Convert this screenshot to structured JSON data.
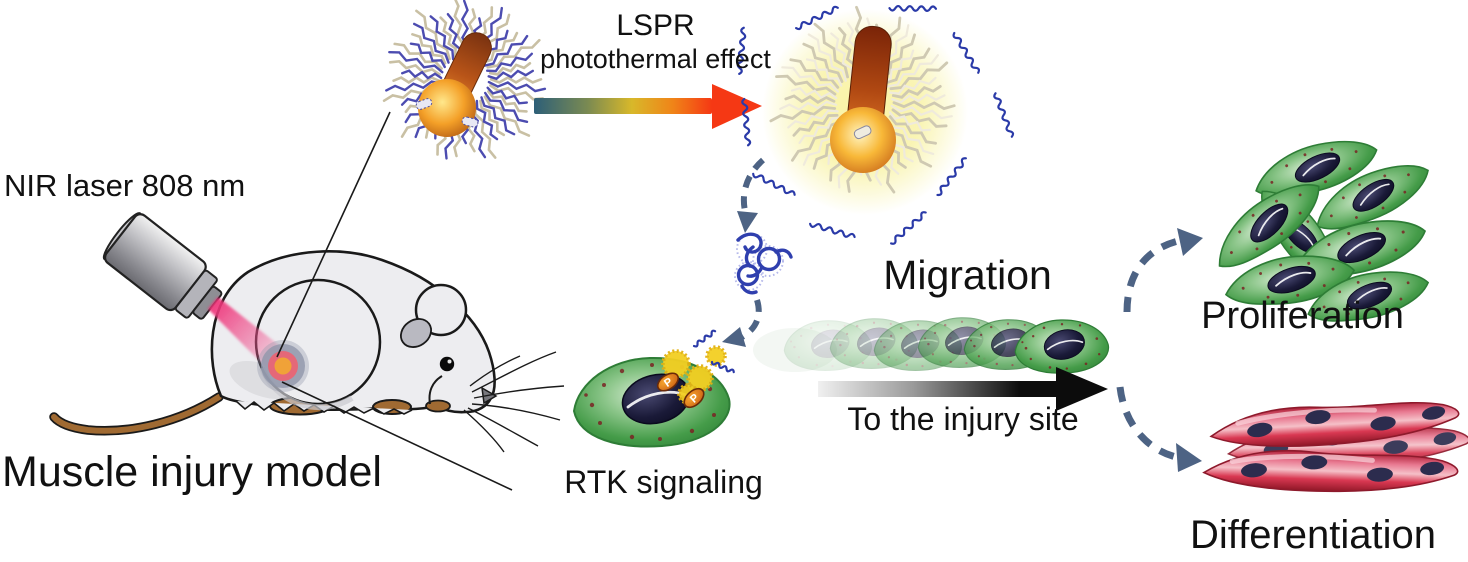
{
  "diagram": {
    "background": "#ffffff",
    "labels": {
      "nir_laser": "NIR laser 808 nm",
      "muscle_injury_model": "Muscle injury model",
      "lspr": "LSPR",
      "photothermal_effect": "photothermal effect",
      "rtk_signaling": "RTK signaling",
      "migration": "Migration",
      "to_the_injury_site": "To the injury site",
      "proliferation": "Proliferation",
      "differentiation": "Differentiation",
      "phospho_p": "P"
    },
    "colors": {
      "text": "#111111",
      "dashed_arrow": "#4d6384",
      "lspr_arrow_start": "#2d5f78",
      "lspr_arrow_mid": "#d8b82a",
      "lspr_arrow_end": "#f53814",
      "migration_arrow_start": "#f0f0f0",
      "migration_arrow_end": "#0c0c0c",
      "green_cell": "#3c9a44",
      "red_myotube": "#d83850",
      "nanoparticle_orange": "#e07828",
      "glow_yellow": "#f8f2a2",
      "polymer_blue": "#2a3aa8",
      "laser_beam_pink": "#ee3278",
      "mouse_body_gray": "#ededf0",
      "tail_feet_brown": "#a06a32"
    },
    "illustrations": [
      {
        "name": "laser-device-icon",
        "desc": "gray NIR laser emitting pink beam"
      },
      {
        "name": "mouse-illustration",
        "desc": "mouse with injured hind limb target"
      },
      {
        "name": "nanoparticle-before-icon",
        "desc": "gold nanorod with blue polymer brushes"
      },
      {
        "name": "nanoparticle-heated-icon",
        "desc": "glowing nanorod releasing blue chains"
      },
      {
        "name": "released-polymer-chain",
        "desc": "released blue polymer coils"
      },
      {
        "name": "rtk-cell-illustration",
        "desc": "green cell with phosphorylated receptors"
      },
      {
        "name": "migrating-cells",
        "desc": "green cell motion trail"
      },
      {
        "name": "proliferating-cells-illustration",
        "desc": "cluster of green cells"
      },
      {
        "name": "differentiated-myotubes-illustration",
        "desc": "red multinucleated myotubes"
      }
    ]
  }
}
